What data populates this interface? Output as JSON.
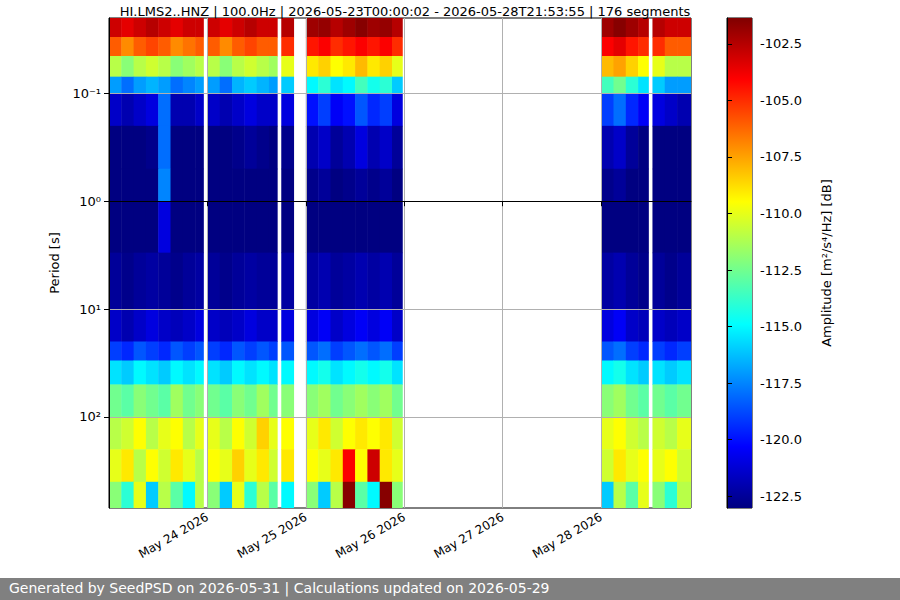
{
  "chart_data": {
    "type": "heatmap",
    "title": "HI.LMS2..HNZ | 100.0Hz | 2026-05-23T00:00:02 - 2026-05-28T21:53:55 | 176 segments",
    "ylabel": "Period [s]",
    "footer": "Generated by SeedPSD on 2026-05-31 | Calculations updated on 2026-05-29",
    "log": "y",
    "grid": true,
    "xlim": [
      "2026-05-23T00:00:02",
      "2026-05-28T21:53:55"
    ],
    "xticks": [
      {
        "value": "2026-05-24T00:00:00",
        "label": "May 24 2026"
      },
      {
        "value": "2026-05-25T00:00:00",
        "label": "May 25 2026"
      },
      {
        "value": "2026-05-26T00:00:00",
        "label": "May 26 2026"
      },
      {
        "value": "2026-05-27T00:00:00",
        "label": "May 27 2026"
      },
      {
        "value": "2026-05-28T00:00:00",
        "label": "May 28 2026"
      }
    ],
    "ylim": [
      0.02,
      700
    ],
    "yticks": [
      {
        "value": 0.1,
        "label": "10⁻¹"
      },
      {
        "value": 1,
        "label": "10⁰"
      },
      {
        "value": 10,
        "label": "10¹"
      },
      {
        "value": 100,
        "label": "10²"
      }
    ],
    "colorbar": {
      "label": "Amplitude [m²/s⁴/Hz] [dB]",
      "range": [
        -123.03,
        -101.35
      ],
      "ticks": [
        -102.5,
        {
          "value": -105,
          "label": "-105.0"
        },
        -107.5,
        {
          "value": -110,
          "label": "-110.0"
        },
        -112.5,
        {
          "value": -115,
          "label": "-115.0"
        },
        -117.5,
        {
          "value": -120,
          "label": "-120.0"
        },
        -122.5
      ]
    },
    "time_bins": [
      "2026-05-23T00:00:02",
      "2026-05-23T03:00:00",
      "2026-05-23T06:00:00",
      "2026-05-23T09:00:00",
      "2026-05-23T12:00:00",
      "2026-05-23T15:00:00",
      "2026-05-23T18:00:00",
      "2026-05-23T21:00:00",
      "2026-05-23T23:00:00",
      "2026-05-24T00:00:00",
      "2026-05-24T03:00:00",
      "2026-05-24T06:00:00",
      "2026-05-24T09:00:00",
      "2026-05-24T12:00:00",
      "2026-05-24T15:00:00",
      "2026-05-24T17:00:00",
      "2026-05-24T18:00:00",
      "2026-05-24T21:00:00",
      "2026-05-25T00:00:00",
      "2026-05-25T03:00:00",
      "2026-05-25T06:00:00",
      "2026-05-25T09:00:00",
      "2026-05-25T12:00:00",
      "2026-05-25T15:00:00",
      "2026-05-25T18:00:00",
      "2026-05-25T21:00:00",
      "2026-05-25T23:30:00",
      "2026-05-28T00:00:00",
      "2026-05-28T03:00:00",
      "2026-05-28T06:00:00",
      "2026-05-28T09:00:00",
      "2026-05-28T11:30:00",
      "2026-05-28T12:30:00",
      "2026-05-28T15:30:00",
      "2026-05-28T18:30:00",
      "2026-05-28T21:53:55"
    ],
    "period_bins": [
      0.02,
      0.03,
      0.045,
      0.07,
      0.1,
      0.2,
      0.5,
      1,
      3,
      10,
      20,
      30,
      50,
      100,
      200,
      400,
      700
    ],
    "cells": [
      [
        -103,
        -103.5,
        -103,
        -102.5,
        -103,
        -103.5,
        -103,
        -103,
        null,
        -103,
        -103.5,
        -103,
        -102.5,
        -103,
        -103,
        null,
        -102.5,
        null,
        -102,
        -101.8,
        -102.5,
        -102,
        -101.5,
        -102,
        -101.8,
        -102.5,
        null,
        -102,
        -101.5,
        -102,
        -102.5,
        null,
        -102.5,
        -103,
        -103
      ],
      [
        -106,
        -107,
        -106,
        -105.5,
        -106,
        -107,
        -106.5,
        -106,
        null,
        -106,
        -107,
        -106,
        -105.5,
        -106,
        -106,
        null,
        -105,
        null,
        -104.5,
        -104,
        -105,
        -104.5,
        -104,
        -104.5,
        -104,
        -105,
        null,
        -104,
        -103.5,
        -104.5,
        -105,
        null,
        -105,
        -106,
        -106
      ],
      [
        -111,
        -112,
        -111,
        -110.5,
        -111,
        -112,
        -111.5,
        -111,
        null,
        -111,
        -112,
        -111,
        -110.5,
        -111,
        -111.5,
        null,
        -110,
        null,
        -109,
        -108.5,
        -109.5,
        -109,
        -108,
        -109,
        -108.5,
        -110,
        null,
        -108,
        -107.5,
        -108.5,
        -109.5,
        null,
        -110,
        -111,
        -111
      ],
      [
        -117,
        -118,
        -117,
        -116.5,
        -117,
        -118,
        -117.5,
        -117,
        null,
        -117,
        -118,
        -116.5,
        -116,
        -116.5,
        -117,
        null,
        -116,
        null,
        -115,
        -114,
        -115.5,
        -115,
        -113.5,
        -114.5,
        -114,
        -116,
        null,
        -113.5,
        -112.5,
        -114,
        -115.5,
        null,
        -116,
        -117,
        -117
      ],
      [
        -121.5,
        -122,
        -121.5,
        -121,
        -118,
        -122,
        -122,
        -121.5,
        null,
        -121.5,
        -122,
        -121.5,
        -121,
        -121.5,
        -121.5,
        null,
        -121,
        null,
        -120,
        -119,
        -120.5,
        -120,
        -118.5,
        -119.5,
        -119,
        -121,
        null,
        -119,
        -118,
        -119.5,
        -120.5,
        null,
        -121,
        -121.5,
        -122
      ],
      [
        -123,
        -123,
        -123,
        -122.8,
        -118,
        -123,
        -123,
        -123,
        null,
        -123,
        -123,
        -122.8,
        -122.5,
        -122.8,
        -123,
        null,
        -122.8,
        null,
        -122,
        -121.5,
        -122.5,
        -122,
        -121,
        -122,
        -121.5,
        -122.5,
        null,
        -122,
        -121.5,
        -122.5,
        -123,
        null,
        -123,
        -123,
        -123
      ],
      [
        -123,
        -123,
        -123,
        -123,
        -117.5,
        -123,
        -123,
        -123,
        null,
        -123,
        -123,
        -123,
        -123,
        -123,
        -123,
        null,
        -123,
        null,
        -122.8,
        -122.5,
        -123,
        -122.8,
        -122.5,
        -122.8,
        -122.5,
        -123,
        null,
        -122.8,
        -122.5,
        -123,
        -123,
        null,
        -123,
        -123,
        -123
      ],
      [
        -123,
        -123,
        -123,
        -123,
        -121,
        -123,
        -123,
        -123,
        null,
        -123,
        -123,
        -123,
        -123,
        -123,
        -123,
        null,
        -123,
        null,
        -123,
        -123,
        -123,
        -123,
        -123,
        -123,
        -123,
        -123,
        null,
        -123,
        -123,
        -123,
        -123,
        null,
        -123,
        -123,
        -123
      ],
      [
        -122.5,
        -122.8,
        -122.5,
        -122.3,
        -122.5,
        -122.8,
        -122.5,
        -122.3,
        null,
        -122.5,
        -122.8,
        -122.5,
        -122.3,
        -122.5,
        -122.5,
        null,
        -122.3,
        null,
        -122.3,
        -122,
        -122.5,
        -122.3,
        -122,
        -122.3,
        -122,
        -122.5,
        null,
        -122.3,
        -122,
        -122.5,
        -122.8,
        null,
        -122.5,
        -122.8,
        -122.5
      ],
      [
        -121.5,
        -122,
        -121.5,
        -121,
        -121.5,
        -121.8,
        -121.5,
        -121,
        null,
        -121.5,
        -121.8,
        -121.5,
        -121,
        -121.5,
        -121.5,
        null,
        -121,
        null,
        -121,
        -120.5,
        -121.5,
        -121,
        -120.5,
        -121,
        -120.5,
        -121.5,
        null,
        -121,
        -120.5,
        -121.5,
        -121.8,
        null,
        -121.5,
        -121.8,
        -121.5
      ],
      [
        -119,
        -119.5,
        -118.5,
        -119,
        -119.5,
        -118.5,
        -119,
        -118.5,
        null,
        -119,
        -119.5,
        -118.5,
        -119,
        -118.5,
        -119,
        null,
        -118.5,
        null,
        -118.5,
        -118,
        -119,
        -118.5,
        -118,
        -118.5,
        -118,
        -119,
        null,
        -118.5,
        -118,
        -119,
        -119.5,
        null,
        -119,
        -119.5,
        -119
      ],
      [
        -115.5,
        -116,
        -115,
        -115.5,
        -116,
        -115,
        -115.5,
        -115,
        null,
        -115.5,
        -116,
        -115,
        -115.5,
        -115,
        -115.5,
        null,
        -115,
        null,
        -115,
        -114.5,
        -115.5,
        -115,
        -114.5,
        -115,
        -114.5,
        -115.5,
        null,
        -115,
        -114.5,
        -115.5,
        -116,
        null,
        -115.5,
        -116,
        -115.5
      ],
      [
        -112.5,
        -113,
        -112,
        -112.5,
        -113,
        -111.5,
        -112.5,
        -112,
        null,
        -112.5,
        -113,
        -112,
        -112.5,
        -111.5,
        -112.5,
        null,
        -112,
        null,
        -112,
        -111.5,
        -112.5,
        -112,
        -111.5,
        -112,
        -111.5,
        -112.5,
        null,
        -112,
        -111.5,
        -112.5,
        -113,
        null,
        -112.5,
        -113,
        -112.5
      ],
      [
        -111,
        -110.5,
        -109.5,
        -111,
        -110,
        -109.5,
        -111,
        -110,
        null,
        -110,
        -111,
        -109.5,
        -110.5,
        -108.5,
        -110,
        null,
        -109.5,
        null,
        -110,
        -109,
        -110.5,
        -109.5,
        -109,
        -109.5,
        -109,
        -110.5,
        null,
        -110,
        -109.5,
        -110.5,
        -111,
        null,
        -110.5,
        -111,
        -110
      ],
      [
        -110,
        -109,
        -111,
        -109.5,
        -110.5,
        -109,
        -110,
        -111,
        null,
        -109.5,
        -110,
        -108.5,
        -110,
        -109,
        -110.5,
        null,
        -109,
        null,
        -109.5,
        -110,
        -109,
        -104,
        -109.5,
        -103,
        -109,
        -110,
        null,
        -110.5,
        -109,
        -110,
        -109.5,
        null,
        -110,
        -109.5,
        -110.5
      ],
      [
        -112,
        -114,
        -110,
        -116,
        -111,
        -113,
        -115,
        -111,
        null,
        -112,
        -116,
        -110,
        -114,
        -111,
        -113,
        null,
        -115,
        null,
        -112,
        -116,
        -111,
        -101.5,
        -113,
        -115,
        -101.5,
        -112,
        null,
        -116,
        -111,
        -113,
        -110,
        null,
        -112,
        -114,
        -111
      ]
    ]
  }
}
